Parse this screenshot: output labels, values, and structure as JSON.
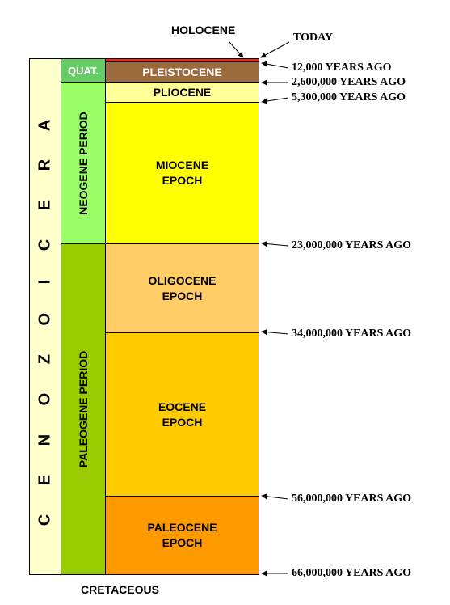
{
  "era": {
    "label": "C E N O Z O I C   E R A"
  },
  "periods": {
    "quaternary": "QUAT.",
    "neogene": "NEOGENE PERIOD",
    "paleogene": "PALEOGENE PERIOD"
  },
  "epochs": {
    "holocene": "HOLOCENE",
    "pleistocene": "PLEISTOCENE",
    "pliocene": "PLIOCENE",
    "miocene": "MIOCENE\nEPOCH",
    "oligocene": "OLIGOCENE\nEPOCH",
    "eocene": "EOCENE\nEPOCH",
    "paleocene": "PALEOCENE\nEPOCH"
  },
  "boundaries": {
    "today": "TODAY",
    "b1": "12,000 YEARS AGO",
    "b2": "2,600,000 YEARS AGO",
    "b3": "5,300,000 YEARS AGO",
    "b4": "23,000,000 YEARS AGO",
    "b5": "34,000,000 YEARS AGO",
    "b6": "56,000,000 YEARS AGO",
    "b7": "66,000,000 YEARS AGO"
  },
  "below": "CRETACEOUS",
  "colors": {
    "era": "#ffffcc",
    "quaternary": "#66cc66",
    "neogene": "#99ff66",
    "paleogene": "#99cc00",
    "holocene": "#e32b22",
    "pleistocene": "#9c6a3c",
    "pliocene": "#ffff99",
    "miocene": "#ffff00",
    "oligocene": "#ffcc66",
    "eocene": "#ffcc00",
    "paleocene": "#ff9900"
  }
}
